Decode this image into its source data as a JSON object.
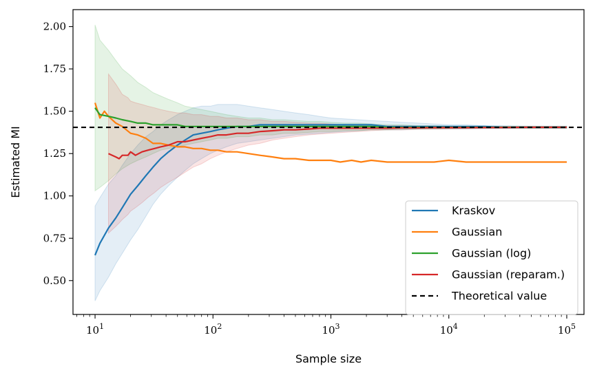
{
  "chart_data": {
    "type": "line",
    "xlabel": "Sample size",
    "ylabel": "Estimated MI",
    "xscale": "log",
    "xlim": [
      6.5,
      140000
    ],
    "ylim": [
      0.3,
      2.1
    ],
    "x_ticks": [
      {
        "value": 10,
        "base": "10",
        "exp": "1"
      },
      {
        "value": 100,
        "base": "10",
        "exp": "2"
      },
      {
        "value": 1000,
        "base": "10",
        "exp": "3"
      },
      {
        "value": 10000,
        "base": "10",
        "exp": "4"
      },
      {
        "value": 100000,
        "base": "10",
        "exp": "5"
      }
    ],
    "y_ticks": [
      {
        "value": 0.5,
        "label": "0.50"
      },
      {
        "value": 0.75,
        "label": "0.75"
      },
      {
        "value": 1.0,
        "label": "1.00"
      },
      {
        "value": 1.25,
        "label": "1.25"
      },
      {
        "value": 1.5,
        "label": "1.50"
      },
      {
        "value": 1.75,
        "label": "1.75"
      },
      {
        "value": 2.0,
        "label": "2.00"
      }
    ],
    "grid": false,
    "legend_position": "lower-right",
    "reference_line": {
      "name": "Theoretical value",
      "y": 1.405,
      "color": "#000000",
      "style": "dashed"
    },
    "series": [
      {
        "name": "Kraskov",
        "color": "#1f77b4",
        "x": [
          10,
          11,
          13,
          15,
          17,
          20,
          23,
          27,
          31,
          36,
          42,
          50,
          58,
          68,
          80,
          95,
          110,
          130,
          160,
          200,
          250,
          320,
          400,
          500,
          650,
          800,
          1000,
          1300,
          1700,
          2200,
          3000,
          4000,
          5500,
          7500,
          10000,
          14000,
          20000,
          30000,
          45000,
          65000,
          100000
        ],
        "values": [
          0.65,
          0.72,
          0.81,
          0.87,
          0.93,
          1.01,
          1.06,
          1.12,
          1.17,
          1.22,
          1.26,
          1.3,
          1.33,
          1.36,
          1.37,
          1.38,
          1.39,
          1.4,
          1.41,
          1.41,
          1.42,
          1.42,
          1.42,
          1.42,
          1.42,
          1.42,
          1.42,
          1.42,
          1.42,
          1.42,
          1.41,
          1.41,
          1.41,
          1.41,
          1.41,
          1.41,
          1.41,
          1.405,
          1.405,
          1.405,
          1.405
        ],
        "lower": [
          0.38,
          0.44,
          0.52,
          0.6,
          0.66,
          0.74,
          0.8,
          0.88,
          0.95,
          1.01,
          1.06,
          1.11,
          1.15,
          1.19,
          1.22,
          1.25,
          1.27,
          1.29,
          1.31,
          1.32,
          1.33,
          1.34,
          1.35,
          1.36,
          1.365,
          1.37,
          1.375,
          1.38,
          1.385,
          1.39,
          1.39,
          1.39,
          1.395,
          1.395,
          1.395,
          1.395,
          1.397,
          1.397,
          1.398,
          1.398,
          1.398
        ],
        "upper": [
          0.94,
          0.99,
          1.07,
          1.12,
          1.18,
          1.25,
          1.3,
          1.35,
          1.38,
          1.42,
          1.45,
          1.48,
          1.5,
          1.52,
          1.53,
          1.53,
          1.54,
          1.54,
          1.54,
          1.53,
          1.52,
          1.51,
          1.5,
          1.49,
          1.48,
          1.47,
          1.46,
          1.455,
          1.45,
          1.445,
          1.44,
          1.435,
          1.43,
          1.425,
          1.42,
          1.42,
          1.415,
          1.415,
          1.413,
          1.412,
          1.412
        ]
      },
      {
        "name": "Gaussian",
        "color": "#ff7f0e",
        "x": [
          10,
          11,
          12,
          13,
          15,
          17,
          20,
          23,
          27,
          31,
          36,
          42,
          50,
          58,
          68,
          80,
          95,
          110,
          130,
          160,
          200,
          250,
          320,
          400,
          500,
          650,
          800,
          1000,
          1200,
          1500,
          1800,
          2200,
          3000,
          4000,
          5500,
          7500,
          10000,
          14000,
          20000,
          30000,
          45000,
          65000,
          100000
        ],
        "values": [
          1.55,
          1.46,
          1.5,
          1.47,
          1.43,
          1.41,
          1.37,
          1.36,
          1.34,
          1.31,
          1.31,
          1.3,
          1.29,
          1.29,
          1.28,
          1.28,
          1.27,
          1.27,
          1.26,
          1.26,
          1.25,
          1.24,
          1.23,
          1.22,
          1.22,
          1.21,
          1.21,
          1.21,
          1.2,
          1.21,
          1.2,
          1.21,
          1.2,
          1.2,
          1.2,
          1.2,
          1.21,
          1.2,
          1.2,
          1.2,
          1.2,
          1.2,
          1.2
        ]
      },
      {
        "name": "Gaussian (log)",
        "color": "#2ca02c",
        "x": [
          10,
          11,
          13,
          15,
          17,
          20,
          23,
          27,
          31,
          36,
          42,
          50,
          58,
          68,
          80,
          95,
          110,
          130,
          160,
          200,
          250,
          320,
          400,
          500,
          650,
          800,
          1000,
          1300,
          1700,
          2200,
          3000,
          4000,
          5500,
          7500,
          10000,
          14000,
          20000,
          30000,
          45000,
          65000,
          100000
        ],
        "values": [
          1.52,
          1.48,
          1.47,
          1.46,
          1.45,
          1.44,
          1.43,
          1.43,
          1.42,
          1.42,
          1.42,
          1.42,
          1.41,
          1.41,
          1.41,
          1.41,
          1.41,
          1.41,
          1.41,
          1.41,
          1.41,
          1.41,
          1.41,
          1.41,
          1.41,
          1.41,
          1.41,
          1.41,
          1.41,
          1.41,
          1.405,
          1.405,
          1.405,
          1.405,
          1.405,
          1.405,
          1.405,
          1.405,
          1.405,
          1.405,
          1.405
        ],
        "lower": [
          1.03,
          1.05,
          1.09,
          1.13,
          1.16,
          1.19,
          1.21,
          1.23,
          1.25,
          1.27,
          1.28,
          1.29,
          1.3,
          1.31,
          1.32,
          1.33,
          1.34,
          1.34,
          1.35,
          1.35,
          1.36,
          1.36,
          1.37,
          1.37,
          1.375,
          1.38,
          1.38,
          1.385,
          1.385,
          1.39,
          1.39,
          1.393,
          1.395,
          1.396,
          1.397,
          1.398,
          1.4,
          1.4,
          1.4,
          1.4,
          1.4
        ],
        "upper": [
          2.01,
          1.92,
          1.86,
          1.8,
          1.75,
          1.71,
          1.67,
          1.64,
          1.61,
          1.59,
          1.57,
          1.55,
          1.53,
          1.52,
          1.51,
          1.5,
          1.49,
          1.48,
          1.47,
          1.46,
          1.46,
          1.45,
          1.45,
          1.445,
          1.44,
          1.44,
          1.435,
          1.43,
          1.43,
          1.425,
          1.42,
          1.42,
          1.415,
          1.415,
          1.413,
          1.412,
          1.41,
          1.41,
          1.41,
          1.41,
          1.41
        ]
      },
      {
        "name": "Gaussian (reparam.)",
        "color": "#d62728",
        "x": [
          13,
          15,
          16,
          17,
          19,
          20,
          22,
          25,
          28,
          32,
          36,
          42,
          50,
          58,
          68,
          80,
          95,
          110,
          130,
          160,
          200,
          250,
          320,
          400,
          500,
          650,
          800,
          1000,
          1300,
          1700,
          2200,
          3000,
          4000,
          5500,
          7500,
          10000,
          14000,
          20000,
          30000,
          45000,
          65000,
          100000
        ],
        "values": [
          1.25,
          1.23,
          1.22,
          1.24,
          1.24,
          1.26,
          1.24,
          1.26,
          1.27,
          1.28,
          1.29,
          1.3,
          1.32,
          1.32,
          1.33,
          1.34,
          1.35,
          1.36,
          1.36,
          1.37,
          1.37,
          1.38,
          1.385,
          1.39,
          1.39,
          1.395,
          1.4,
          1.4,
          1.4,
          1.4,
          1.4,
          1.4,
          1.402,
          1.402,
          1.403,
          1.403,
          1.403,
          1.404,
          1.404,
          1.405,
          1.405,
          1.405
        ],
        "lower": [
          0.78,
          0.82,
          0.84,
          0.86,
          0.89,
          0.91,
          0.93,
          0.96,
          0.99,
          1.02,
          1.05,
          1.08,
          1.11,
          1.14,
          1.17,
          1.19,
          1.22,
          1.24,
          1.26,
          1.28,
          1.3,
          1.31,
          1.33,
          1.34,
          1.35,
          1.36,
          1.365,
          1.37,
          1.375,
          1.38,
          1.385,
          1.39,
          1.39,
          1.393,
          1.395,
          1.396,
          1.397,
          1.398,
          1.399,
          1.4,
          1.4,
          1.4
        ],
        "upper": [
          1.72,
          1.66,
          1.63,
          1.6,
          1.58,
          1.56,
          1.55,
          1.54,
          1.53,
          1.52,
          1.51,
          1.5,
          1.49,
          1.49,
          1.48,
          1.48,
          1.47,
          1.47,
          1.46,
          1.46,
          1.45,
          1.45,
          1.44,
          1.44,
          1.435,
          1.43,
          1.43,
          1.425,
          1.42,
          1.42,
          1.42,
          1.415,
          1.415,
          1.413,
          1.412,
          1.41,
          1.41,
          1.41,
          1.41,
          1.41,
          1.41,
          1.41
        ]
      }
    ]
  }
}
